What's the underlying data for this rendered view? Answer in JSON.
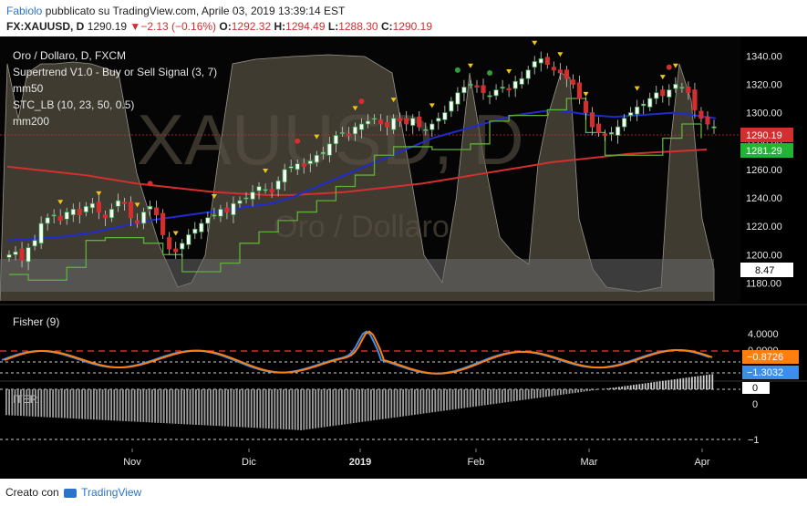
{
  "header": {
    "user": "Fabiolo",
    "published_text": "pubblicato su TradingView.com, Aprile 03, 2019 13:39:14 EST",
    "symbol": "FX:XAUUSD, D",
    "last": "1290.19",
    "change": "−2.13 (−0.16%)",
    "o_label": "O:",
    "o": "1292.32",
    "h_label": "H:",
    "h": "1294.49",
    "l_label": "L:",
    "l": "1288.30",
    "c_label": "C:",
    "c": "1290.19",
    "down_glyph": "▼"
  },
  "legend": {
    "title": "Oro / Dollaro, D, FXCM",
    "ind1": "Supertrend V1.0 - Buy or Sell Signal (3, 7)",
    "ind2": "mm50",
    "ind3": "STC_LB (10, 23, 50, 0.5)",
    "ind4": "mm200"
  },
  "watermark": {
    "symbol": "XAUUSD, D",
    "name": "Oro / Dollaro"
  },
  "panes": {
    "fisher_label": "Fisher (9)",
    "iter_label": "ITER"
  },
  "price_axis": {
    "ticks": [
      "1340.00",
      "1320.00",
      "1300.00",
      "1280.00",
      "1260.00",
      "1240.00",
      "1220.00",
      "1200.00",
      "1180.00"
    ],
    "last_price": "1290.19",
    "supertrend_price": "1281.29",
    "stc_value": "8.47"
  },
  "fisher_axis": {
    "ticks": [
      "4.0000",
      "0.0000"
    ],
    "val1": "−0.8726",
    "val2": "−1.3032"
  },
  "iter_axis": {
    "ticks": [
      "0",
      "−1"
    ],
    "top": "0"
  },
  "time_axis": {
    "labels": [
      "Nov",
      "Dic",
      "2019",
      "Feb",
      "Mar",
      "Apr"
    ]
  },
  "footer": {
    "created": "Creato con",
    "brand": "TradingView"
  },
  "colors": {
    "up": "#2e9e3e",
    "down": "#d32f2f",
    "mm50": "#1f2bd1",
    "mm200": "#d32f2f",
    "supertrend": "#5fae3a",
    "fisher1": "#ff7f0e",
    "fisher2": "#3c8ee8"
  },
  "chart_data": {
    "type": "candlestick",
    "title": "Oro / Dollaro, D, FXCM",
    "ylim": [
      1170,
      1350
    ],
    "x_labels": [
      "Nov",
      "Dic",
      "2019",
      "Feb",
      "Mar",
      "Apr"
    ],
    "close_series": [
      1200,
      1202,
      1196,
      1205,
      1210,
      1222,
      1226,
      1228,
      1224,
      1230,
      1232,
      1228,
      1234,
      1236,
      1230,
      1226,
      1232,
      1238,
      1236,
      1226,
      1222,
      1230,
      1234,
      1228,
      1214,
      1204,
      1202,
      1208,
      1214,
      1218,
      1222,
      1226,
      1228,
      1232,
      1230,
      1236,
      1238,
      1240,
      1244,
      1248,
      1246,
      1244,
      1252,
      1260,
      1262,
      1264,
      1262,
      1266,
      1270,
      1272,
      1278,
      1284,
      1286,
      1284,
      1290,
      1292,
      1294,
      1296,
      1292,
      1290,
      1296,
      1294,
      1292,
      1296,
      1290,
      1288,
      1292,
      1296,
      1300,
      1308,
      1314,
      1318,
      1320,
      1318,
      1314,
      1312,
      1316,
      1318,
      1316,
      1322,
      1324,
      1330,
      1336,
      1338,
      1334,
      1330,
      1328,
      1324,
      1320,
      1310,
      1300,
      1290,
      1286,
      1284,
      1286,
      1290,
      1296,
      1300,
      1304,
      1306,
      1310,
      1314,
      1312,
      1316,
      1320,
      1318,
      1314,
      1302,
      1296,
      1292,
      1290
    ],
    "mm50": [
      1210,
      1211,
      1212,
      1213,
      1215,
      1218,
      1221,
      1224,
      1226,
      1228,
      1230,
      1232,
      1234,
      1236,
      1240,
      1246,
      1252,
      1258,
      1264,
      1270,
      1276,
      1282,
      1286,
      1290,
      1294,
      1298,
      1300,
      1302,
      1300,
      1298,
      1297,
      1298,
      1299,
      1300,
      1298,
      1296
    ],
    "mm200": [
      1262,
      1260,
      1258,
      1256,
      1253,
      1250,
      1248,
      1246,
      1244,
      1243,
      1242,
      1242,
      1243,
      1244,
      1246,
      1248,
      1250,
      1253,
      1256,
      1259,
      1262,
      1265,
      1267,
      1269,
      1271,
      1272,
      1273,
      1274
    ],
    "last": 1290.19,
    "supertrend_last": 1281.29,
    "stc_last": 8.47,
    "fisher_last": [
      -0.8726,
      -1.3032
    ]
  }
}
